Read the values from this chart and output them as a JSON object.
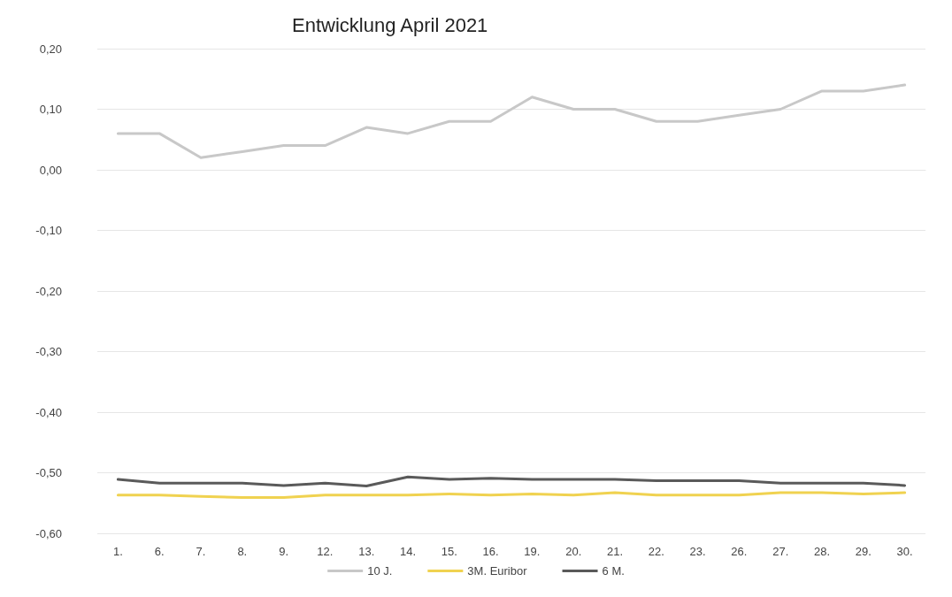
{
  "chart_data": {
    "type": "line",
    "title": "Entwicklung April 2021",
    "categories": [
      "1.",
      "6.",
      "7.",
      "8.",
      "9.",
      "12.",
      "13.",
      "14.",
      "15.",
      "16.",
      "19.",
      "20.",
      "21.",
      "22.",
      "23.",
      "26.",
      "27.",
      "28.",
      "29.",
      "30."
    ],
    "series": [
      {
        "name": "10 J.",
        "color": "#c8c8c8",
        "values": [
          0.06,
          0.06,
          0.02,
          0.03,
          0.04,
          0.04,
          0.07,
          0.06,
          0.08,
          0.08,
          0.12,
          0.1,
          0.1,
          0.08,
          0.08,
          0.09,
          0.1,
          0.13,
          0.13,
          0.14
        ]
      },
      {
        "name": "3M. Euribor",
        "color": "#f0d250",
        "values": [
          -0.537,
          -0.537,
          -0.539,
          -0.541,
          -0.541,
          -0.537,
          -0.537,
          -0.537,
          -0.535,
          -0.537,
          -0.535,
          -0.537,
          -0.533,
          -0.537,
          -0.537,
          -0.537,
          -0.533,
          -0.533,
          -0.535,
          -0.533
        ]
      },
      {
        "name": "6 M.",
        "color": "#5a5a5a",
        "values": [
          -0.511,
          -0.517,
          -0.517,
          -0.517,
          -0.521,
          -0.517,
          -0.522,
          -0.507,
          -0.511,
          -0.509,
          -0.511,
          -0.511,
          -0.511,
          -0.513,
          -0.513,
          -0.513,
          -0.517,
          -0.517,
          -0.517,
          -0.521
        ]
      }
    ],
    "ylim": [
      -0.6,
      0.2
    ],
    "yticks": [
      {
        "value": -0.6,
        "label": "-0,60"
      },
      {
        "value": -0.5,
        "label": "-0,50"
      },
      {
        "value": -0.4,
        "label": "-0,40"
      },
      {
        "value": -0.3,
        "label": "-0,30"
      },
      {
        "value": -0.2,
        "label": "-0,20"
      },
      {
        "value": -0.1,
        "label": "-0,10"
      },
      {
        "value": 0,
        "label": "0,00"
      },
      {
        "value": 0.1,
        "label": "0,10"
      },
      {
        "value": 0.2,
        "label": "0,20"
      }
    ],
    "grid": "y",
    "legend": "bottom",
    "marker": "none",
    "line_style": "solid"
  }
}
